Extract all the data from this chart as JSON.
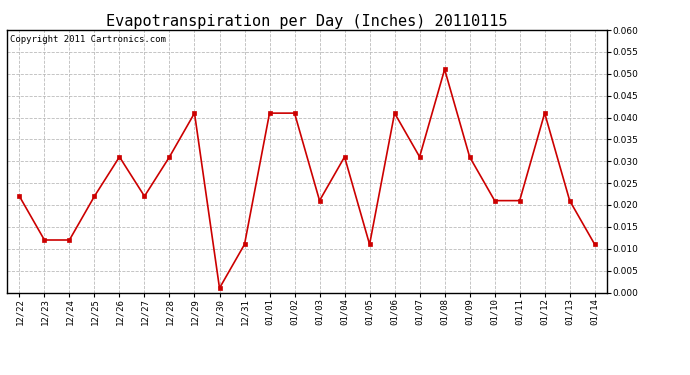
{
  "title": "Evapotranspiration per Day (Inches) 20110115",
  "copyright": "Copyright 2011 Cartronics.com",
  "x_labels": [
    "12/22",
    "12/23",
    "12/24",
    "12/25",
    "12/26",
    "12/27",
    "12/28",
    "12/29",
    "12/30",
    "12/31",
    "01/01",
    "01/02",
    "01/03",
    "01/04",
    "01/05",
    "01/06",
    "01/07",
    "01/08",
    "01/09",
    "01/10",
    "01/11",
    "01/12",
    "01/13",
    "01/14"
  ],
  "y_values": [
    0.022,
    0.012,
    0.012,
    0.022,
    0.031,
    0.022,
    0.031,
    0.041,
    0.001,
    0.011,
    0.041,
    0.041,
    0.021,
    0.031,
    0.011,
    0.041,
    0.031,
    0.051,
    0.031,
    0.021,
    0.021,
    0.041,
    0.021,
    0.011
  ],
  "line_color": "#cc0000",
  "marker": "s",
  "marker_size": 3,
  "ylim": [
    0.0,
    0.06
  ],
  "yticks": [
    0.0,
    0.005,
    0.01,
    0.015,
    0.02,
    0.025,
    0.03,
    0.035,
    0.04,
    0.045,
    0.05,
    0.055,
    0.06
  ],
  "grid_color": "#bbbbbb",
  "bg_color": "#ffffff",
  "title_fontsize": 11,
  "copyright_fontsize": 6.5,
  "tick_fontsize": 6.5
}
